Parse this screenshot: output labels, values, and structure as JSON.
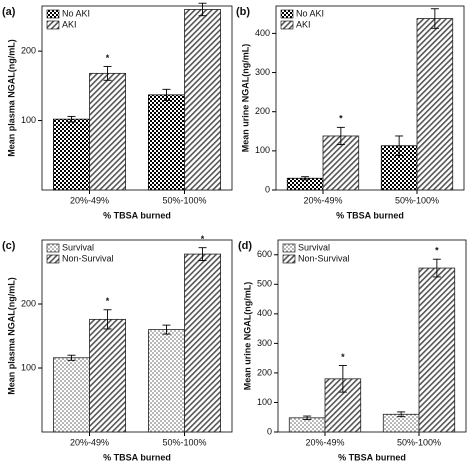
{
  "chart_data": [
    {
      "type": "bar",
      "panel": "(a)",
      "y_label": "Mean plasma NGAL(ng/mL)",
      "x_label": "% TBSA burned",
      "categories": [
        "20%-49%",
        "50%-100%"
      ],
      "ylim": [
        0,
        265
      ],
      "yticks": [
        100,
        200
      ],
      "series": [
        {
          "name": "No AKI",
          "color": "#000000",
          "pattern": "checker",
          "values": [
            102,
            137
          ],
          "errors": [
            4,
            8
          ]
        },
        {
          "name": "AKI",
          "color": "#777777",
          "pattern": "hatch",
          "values": [
            168,
            260
          ],
          "errors": [
            10,
            9
          ],
          "marker": "*"
        }
      ]
    },
    {
      "type": "bar",
      "panel": "(b)",
      "y_label": "Mean urine NGAL(ng/mL)",
      "x_label": "% TBSA burned",
      "categories": [
        "20%-49%",
        "50%-100%"
      ],
      "ylim": [
        0,
        470
      ],
      "yticks": [
        0,
        100,
        200,
        300,
        400
      ],
      "series": [
        {
          "name": "No AKI",
          "color": "#000000",
          "pattern": "checker",
          "values": [
            30,
            113
          ],
          "errors": [
            4,
            25
          ]
        },
        {
          "name": "AKI",
          "color": "#777777",
          "pattern": "hatch",
          "values": [
            138,
            438
          ],
          "errors": [
            22,
            25
          ],
          "marker": "*"
        }
      ]
    },
    {
      "type": "bar",
      "panel": "(c)",
      "y_label": "Mean plasma NGAL(ng/mL)",
      "x_label": "% TBSA burned",
      "categories": [
        "20%-49%",
        "50%-100%"
      ],
      "ylim": [
        0,
        300
      ],
      "yticks": [
        100,
        200
      ],
      "series": [
        {
          "name": "Survival",
          "color": "#999999",
          "pattern": "dots",
          "values": [
            116,
            160
          ],
          "errors": [
            4,
            7
          ]
        },
        {
          "name": "Non-Survival",
          "color": "#777777",
          "pattern": "hatch",
          "values": [
            176,
            278
          ],
          "errors": [
            15,
            10
          ],
          "marker": "*"
        }
      ]
    },
    {
      "type": "bar",
      "panel": "(d)",
      "y_label": "Mean urine NGAL(ng/mL)",
      "x_label": "% TBSA burned",
      "categories": [
        "20%-49%",
        "50%-100%"
      ],
      "ylim": [
        0,
        650
      ],
      "yticks": [
        0,
        100,
        200,
        300,
        400,
        500,
        600
      ],
      "series": [
        {
          "name": "Survival",
          "color": "#999999",
          "pattern": "dots",
          "values": [
            48,
            60
          ],
          "errors": [
            6,
            8
          ]
        },
        {
          "name": "Non-Survival",
          "color": "#777777",
          "pattern": "hatch",
          "values": [
            180,
            555
          ],
          "errors": [
            45,
            30
          ],
          "marker": "*"
        }
      ]
    }
  ]
}
